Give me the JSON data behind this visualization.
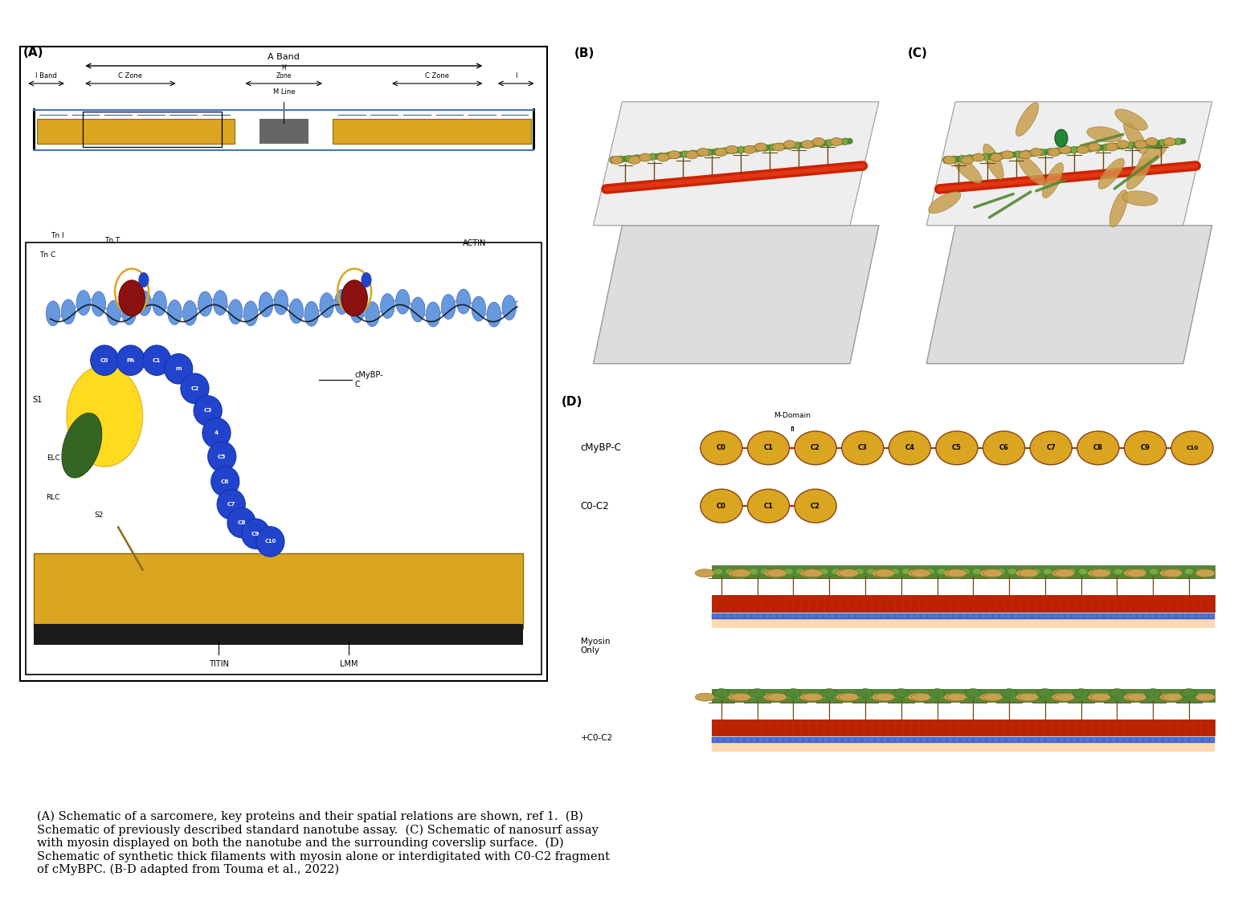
{
  "figure_width": 15.36,
  "figure_height": 11.32,
  "bg_color": "#ffffff",
  "caption_lines": [
    "(A) Schematic of a sarcomere, key proteins and their spatial relations are shown, ref 1.  (B)",
    "Schematic of previously described standard nanotube assay.  (C) Schematic of nanosurf assay",
    "with myosin displayed on both the nanotube and the surrounding coverslip surface.  (D)",
    "Schematic of synthetic thick filaments with myosin alone or interdigitated with C0-C2 fragment",
    "of cMyBPC. (B-D adapted from Touma et al., 2022)"
  ],
  "caption_bold_words": [
    "(A)",
    "(B)",
    "(C)",
    "(D)"
  ],
  "domain_circles_cMyBPC": [
    "C0",
    "C1",
    "C2",
    "C3",
    "C4",
    "C5",
    "C6",
    "C7",
    "C8",
    "C9",
    "C10"
  ],
  "domain_circles_C0C2": [
    "C0",
    "C1",
    "C2"
  ],
  "circle_color": "#DAA520",
  "circle_edge_color": "#8B4513",
  "m_domain_label": "M-Domain",
  "blue_circle_color": "#2244cc",
  "blue_circle_edge": "#1133aa",
  "C_labels_A": [
    "C0",
    "PA",
    "C1",
    "m",
    "C2",
    "C3",
    "4",
    "C5",
    "C6",
    "C7",
    "C8",
    "C9",
    "C10"
  ],
  "actin_color_A": "#5588dd",
  "myosin_yellow": "#DAA520",
  "red_filament": "#bb2200",
  "blue_filament": "#4466cc",
  "green_actin": "#558833",
  "myosin_head_color": "#c8a050",
  "myosin_stalk_color": "#8B6914"
}
